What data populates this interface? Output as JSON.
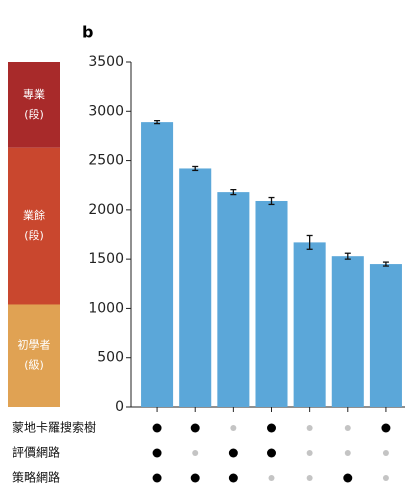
{
  "chart_data": {
    "type": "bar",
    "panel_label": "b",
    "values": [
      2890,
      2420,
      2180,
      2090,
      1670,
      1530,
      1450
    ],
    "errors": [
      15,
      20,
      25,
      35,
      70,
      30,
      20
    ],
    "color": "#5ba7d9",
    "ylim": [
      0,
      3500
    ],
    "yticks": [
      0,
      500,
      1000,
      1500,
      2000,
      2500,
      3000,
      3500
    ],
    "bands": [
      {
        "lines": [
          "專業",
          "(段)"
        ],
        "range": [
          2630,
          3500
        ],
        "color": "#a82a2a"
      },
      {
        "lines": [
          "業餘",
          "(段)"
        ],
        "range": [
          1040,
          2630
        ],
        "color": "#c9472e"
      },
      {
        "lines": [
          "初學者",
          "(級)"
        ],
        "range": [
          0,
          1040
        ],
        "color": "#e0a253"
      }
    ],
    "components": [
      {
        "name": "蒙地卡羅搜索樹",
        "used": [
          true,
          true,
          false,
          true,
          false,
          false,
          true
        ]
      },
      {
        "name": "評價網路",
        "used": [
          true,
          false,
          true,
          true,
          false,
          false,
          false
        ]
      },
      {
        "name": "策略網路",
        "used": [
          true,
          true,
          true,
          false,
          false,
          true,
          false
        ]
      }
    ]
  }
}
